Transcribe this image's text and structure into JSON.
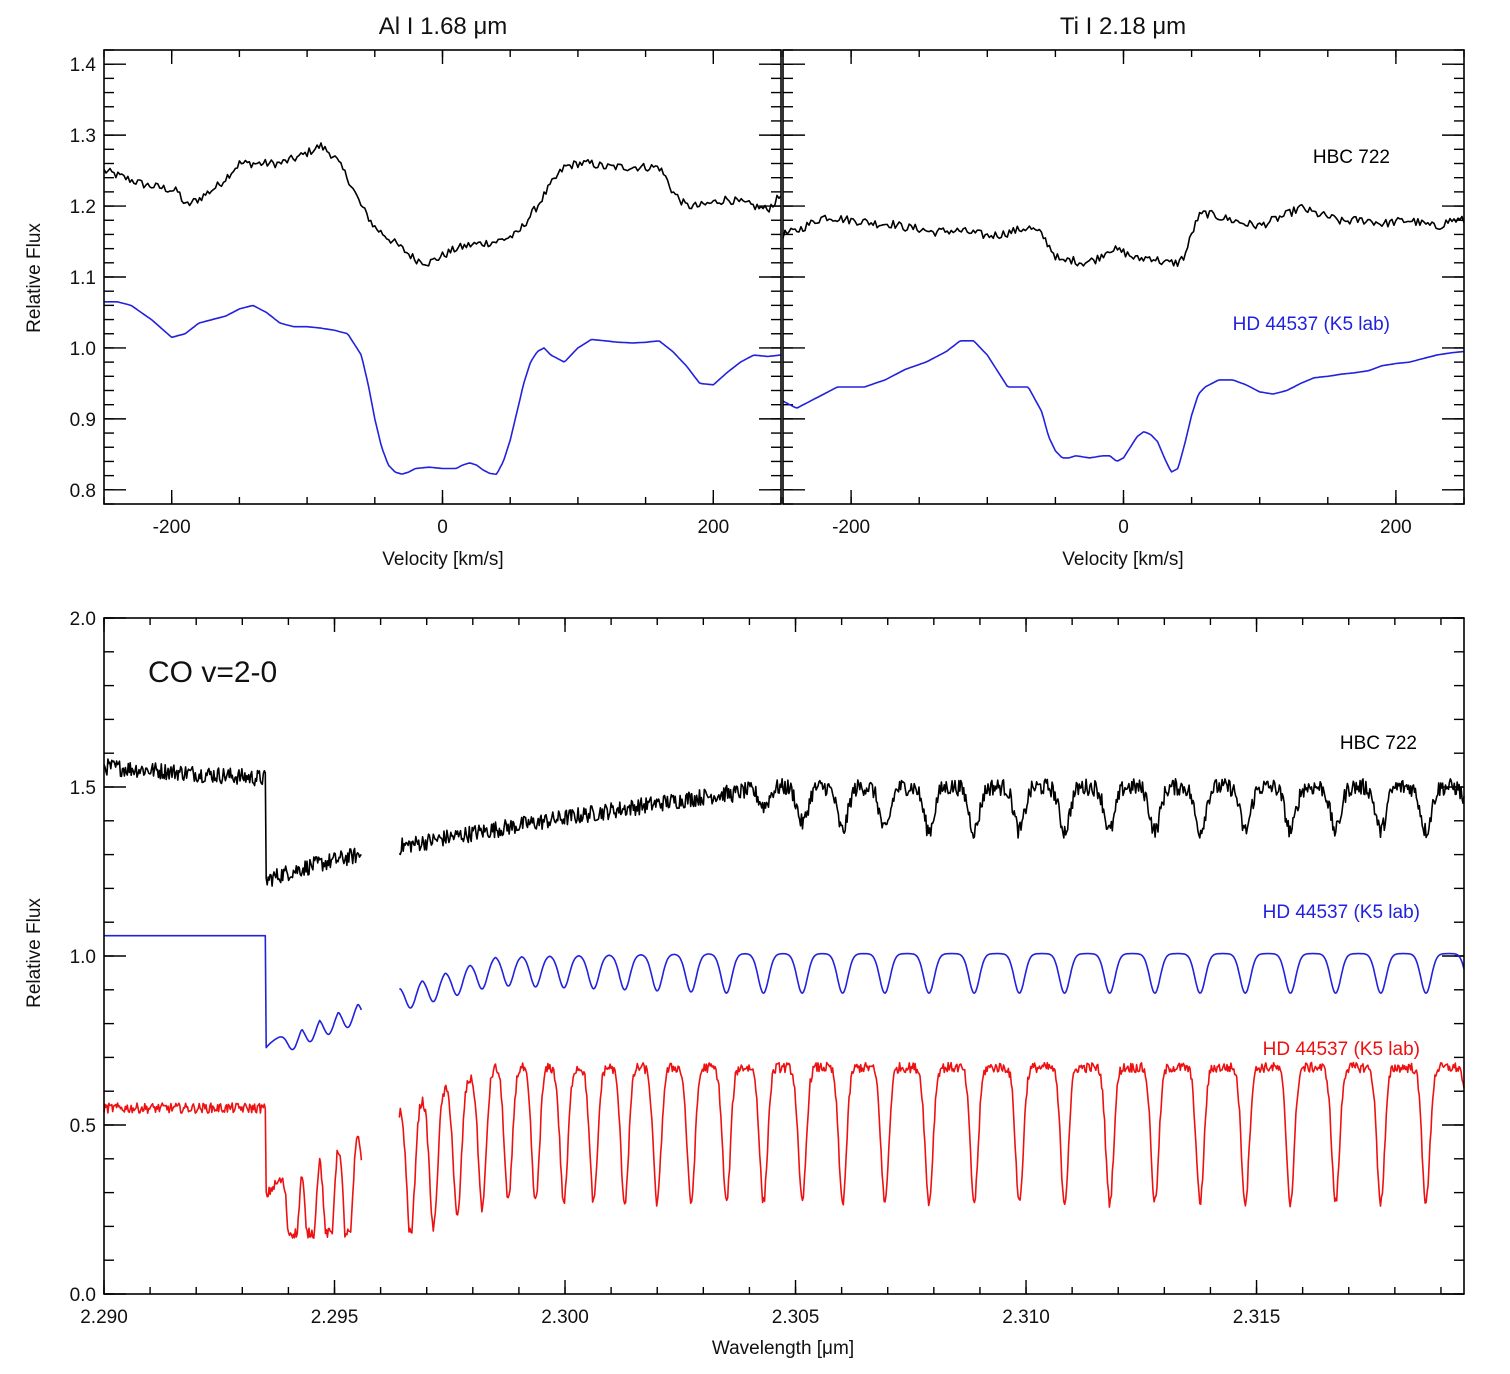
{
  "chart_data": [
    {
      "type": "line",
      "title": "Al I 1.68 μm",
      "xlabel": "Velocity [km/s]",
      "ylabel": "Relative Flux",
      "xlim": [
        -250,
        250
      ],
      "ylim": [
        0.78,
        1.42
      ],
      "xticks": [
        -200,
        0,
        200
      ],
      "xtick_labels": [
        "-200",
        "0",
        "200"
      ],
      "yticks": [
        0.8,
        0.9,
        1.0,
        1.1,
        1.2,
        1.3,
        1.4
      ],
      "ytick_labels": [
        "0.8",
        "0.9",
        "1.0",
        "1.1",
        "1.2",
        "1.3",
        "1.4"
      ],
      "series": [
        {
          "name": "HBC 722",
          "color": "#000000",
          "noise": 0.006,
          "x": [
            -250,
            -235,
            -220,
            -205,
            -195,
            -190,
            -180,
            -165,
            -150,
            -135,
            -120,
            -105,
            -90,
            -80,
            -70,
            -60,
            -50,
            -40,
            -30,
            -20,
            -10,
            0,
            10,
            20,
            40,
            55,
            70,
            80,
            90,
            100,
            110,
            120,
            130,
            140,
            150,
            160,
            165,
            170,
            180,
            190,
            200,
            210,
            220,
            230,
            240,
            250
          ],
          "y": [
            1.25,
            1.24,
            1.23,
            1.225,
            1.22,
            1.2,
            1.21,
            1.23,
            1.26,
            1.26,
            1.26,
            1.27,
            1.285,
            1.27,
            1.24,
            1.2,
            1.17,
            1.155,
            1.14,
            1.125,
            1.12,
            1.13,
            1.14,
            1.145,
            1.15,
            1.16,
            1.2,
            1.23,
            1.255,
            1.26,
            1.26,
            1.255,
            1.255,
            1.255,
            1.255,
            1.255,
            1.24,
            1.22,
            1.2,
            1.2,
            1.205,
            1.21,
            1.205,
            1.2,
            1.195,
            1.215
          ]
        },
        {
          "name": "HD 44537 (K5 lab)",
          "color": "#2222dd",
          "noise": 0,
          "x": [
            -250,
            -240,
            -230,
            -215,
            -200,
            -190,
            -180,
            -170,
            -160,
            -150,
            -140,
            -130,
            -120,
            -110,
            -100,
            -90,
            -80,
            -70,
            -60,
            -55,
            -50,
            -45,
            -40,
            -35,
            -30,
            -25,
            -20,
            -10,
            0,
            10,
            15,
            20,
            25,
            30,
            35,
            40,
            45,
            50,
            55,
            60,
            65,
            70,
            75,
            80,
            90,
            100,
            110,
            120,
            130,
            140,
            150,
            160,
            170,
            180,
            190,
            200,
            210,
            220,
            230,
            240,
            250
          ],
          "y": [
            1.065,
            1.065,
            1.06,
            1.04,
            1.015,
            1.02,
            1.035,
            1.04,
            1.045,
            1.055,
            1.06,
            1.05,
            1.035,
            1.03,
            1.03,
            1.028,
            1.025,
            1.02,
            0.99,
            0.95,
            0.9,
            0.86,
            0.835,
            0.825,
            0.822,
            0.825,
            0.83,
            0.832,
            0.83,
            0.83,
            0.835,
            0.838,
            0.835,
            0.828,
            0.823,
            0.822,
            0.84,
            0.87,
            0.91,
            0.95,
            0.98,
            0.995,
            1.0,
            0.99,
            0.98,
            1.0,
            1.012,
            1.01,
            1.008,
            1.007,
            1.008,
            1.01,
            0.995,
            0.975,
            0.95,
            0.948,
            0.965,
            0.98,
            0.99,
            0.988,
            0.99
          ]
        }
      ],
      "annotations": []
    },
    {
      "type": "line",
      "title": "Ti I 2.18 μm",
      "xlabel": "Velocity [km/s]",
      "ylabel": "",
      "xlim": [
        -250,
        250
      ],
      "ylim": [
        0.78,
        1.42
      ],
      "xticks": [
        -200,
        0,
        200
      ],
      "xtick_labels": [
        "-200",
        "0",
        "200"
      ],
      "series": [
        {
          "name": "HBC 722",
          "color": "#000000",
          "noise": 0.006,
          "x": [
            -250,
            -240,
            -230,
            -220,
            -210,
            -200,
            -190,
            -180,
            -170,
            -160,
            -150,
            -140,
            -130,
            -120,
            -110,
            -100,
            -90,
            -80,
            -70,
            -60,
            -50,
            -45,
            -40,
            -30,
            -20,
            -10,
            0,
            10,
            20,
            30,
            40,
            45,
            50,
            55,
            60,
            70,
            80,
            90,
            100,
            110,
            120,
            130,
            140,
            150,
            160,
            170,
            180,
            190,
            200,
            210,
            220,
            230,
            240,
            250
          ],
          "y": [
            1.16,
            1.165,
            1.175,
            1.185,
            1.183,
            1.18,
            1.178,
            1.175,
            1.175,
            1.17,
            1.168,
            1.163,
            1.165,
            1.165,
            1.162,
            1.158,
            1.16,
            1.165,
            1.17,
            1.16,
            1.13,
            1.12,
            1.125,
            1.12,
            1.125,
            1.14,
            1.135,
            1.125,
            1.128,
            1.12,
            1.12,
            1.13,
            1.16,
            1.185,
            1.19,
            1.185,
            1.18,
            1.175,
            1.172,
            1.18,
            1.188,
            1.198,
            1.19,
            1.185,
            1.178,
            1.18,
            1.18,
            1.175,
            1.178,
            1.18,
            1.175,
            1.17,
            1.18,
            1.18
          ]
        },
        {
          "name": "HD 44537 (K5 lab)",
          "color": "#2222dd",
          "noise": 0,
          "x": [
            -250,
            -240,
            -225,
            -210,
            -200,
            -190,
            -175,
            -160,
            -145,
            -130,
            -120,
            -110,
            -100,
            -90,
            -85,
            -80,
            -70,
            -60,
            -55,
            -50,
            -45,
            -40,
            -35,
            -25,
            -15,
            -10,
            -5,
            0,
            10,
            15,
            20,
            25,
            30,
            35,
            40,
            45,
            50,
            55,
            60,
            70,
            80,
            90,
            100,
            110,
            120,
            130,
            140,
            150,
            160,
            170,
            180,
            190,
            200,
            210,
            220,
            230,
            240,
            250
          ],
          "y": [
            0.925,
            0.915,
            0.93,
            0.945,
            0.945,
            0.945,
            0.955,
            0.97,
            0.98,
            0.995,
            1.01,
            1.01,
            0.99,
            0.96,
            0.945,
            0.945,
            0.945,
            0.91,
            0.875,
            0.855,
            0.845,
            0.845,
            0.848,
            0.845,
            0.848,
            0.848,
            0.84,
            0.845,
            0.875,
            0.882,
            0.878,
            0.868,
            0.845,
            0.825,
            0.83,
            0.865,
            0.905,
            0.935,
            0.945,
            0.955,
            0.955,
            0.948,
            0.938,
            0.935,
            0.94,
            0.95,
            0.958,
            0.96,
            0.963,
            0.965,
            0.968,
            0.975,
            0.978,
            0.98,
            0.985,
            0.99,
            0.993,
            0.995
          ]
        }
      ],
      "annotations": [
        {
          "text": "HBC 722",
          "color": "#000000"
        },
        {
          "text": "HD 44537 (K5 lab)",
          "color": "#2222dd"
        }
      ]
    },
    {
      "type": "line",
      "title": "",
      "xlabel": "Wavelength [μm]",
      "ylabel": "Relative Flux",
      "xlim": [
        2.29,
        2.3195
      ],
      "ylim": [
        0.0,
        2.0
      ],
      "xticks": [
        2.29,
        2.295,
        2.3,
        2.305,
        2.31,
        2.315
      ],
      "xtick_labels": [
        "2.290",
        "2.295",
        "2.300",
        "2.305",
        "2.310",
        "2.315"
      ],
      "yticks": [
        0.0,
        0.5,
        1.0,
        1.5,
        2.0
      ],
      "ytick_labels": [
        "0.0",
        "0.5",
        "1.0",
        "1.5",
        "2.0"
      ],
      "band_head_um": 2.2935,
      "gap_um": [
        2.2956,
        2.2964
      ],
      "series": [
        {
          "name": "HBC 722",
          "color": "#000000",
          "kind": "hbc_co",
          "continuum_start": 1.56,
          "continuum_end": 1.48,
          "min_value": 1.22,
          "line_depth": 0.13,
          "noise": 0.025
        },
        {
          "name": "HD 44537 (K5 lab)",
          "color": "#2222dd",
          "kind": "lab_smooth",
          "continuum": 1.06,
          "min_value": 0.71,
          "line_depth": 0.09,
          "level": 0.98
        },
        {
          "name": "HD 44537 (K5 lab)",
          "color": "#ee1111",
          "kind": "lab_raw",
          "continuum": 0.55,
          "min_value": 0.18,
          "line_depth": 0.38,
          "level": 0.57,
          "noise": 0.015
        }
      ],
      "annotations": [
        {
          "text": "CO v=2-0",
          "color": "#111111"
        },
        {
          "text": "HBC 722",
          "color": "#000000"
        },
        {
          "text": "HD 44537 (K5 lab)",
          "color": "#2222dd"
        },
        {
          "text": "HD 44537 (K5 lab)",
          "color": "#ee1111"
        }
      ]
    }
  ]
}
